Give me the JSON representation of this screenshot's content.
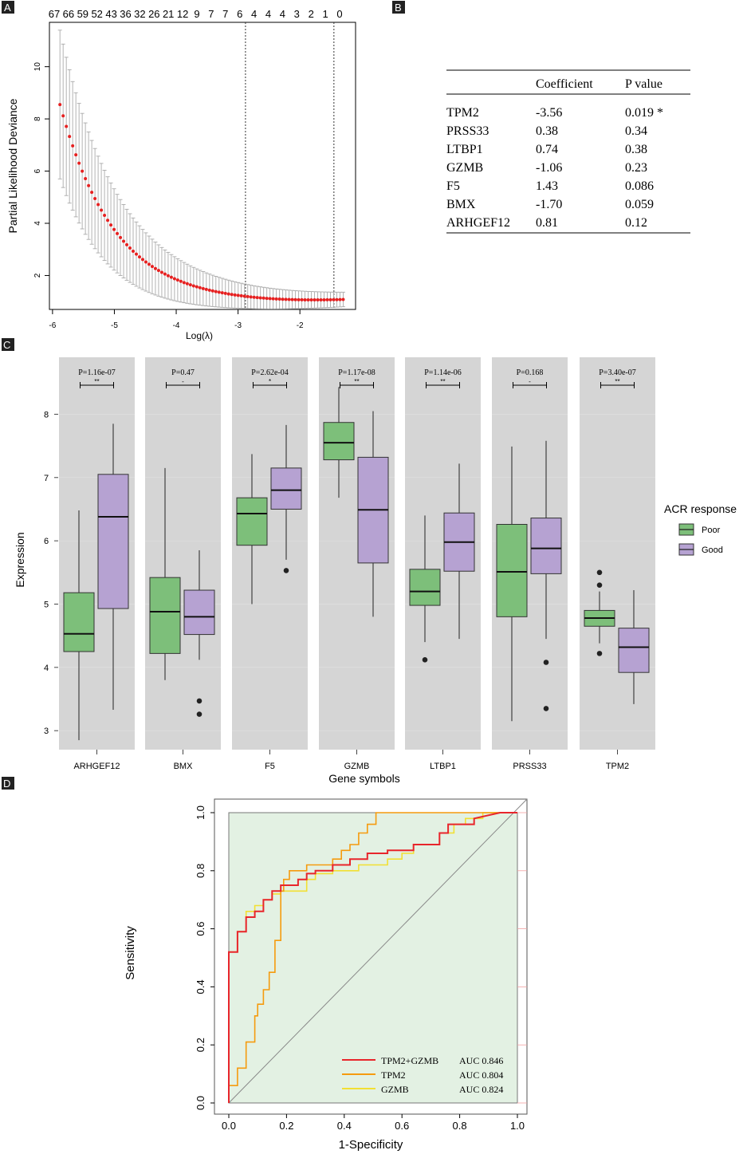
{
  "panels": {
    "a": "A",
    "b": "B",
    "c": "C",
    "d": "D"
  },
  "colors": {
    "poor": "#7dbf7a",
    "good": "#b6a2d2",
    "red_dot": "#e62020",
    "err": "#aaaaaa",
    "gray_bg": "#d5d5d5",
    "roc_bg": "#e3f1e3",
    "roc_combo": "#e8252b",
    "roc_tpm2": "#f59b0e",
    "roc_gzmb": "#f2e033"
  },
  "chart_data": [
    {
      "type": "scatter",
      "panel": "A",
      "xlabel": "Log(λ)",
      "ylabel": "Partial Likelihood Deviance",
      "xlim": [
        -6.05,
        -1.1
      ],
      "ylim": [
        0.7,
        11.7
      ],
      "xticks": [
        -6,
        -5,
        -4,
        -3,
        -2
      ],
      "yticks": [
        2,
        4,
        6,
        8,
        10
      ],
      "top_ticks": [
        "67",
        "66",
        "59",
        "52",
        "43",
        "36",
        "32",
        "26",
        "21",
        "12",
        "9",
        "7",
        "7",
        "6",
        "4",
        "4",
        "4",
        "3",
        "2",
        "1",
        "0"
      ],
      "vlines": [
        -2.88,
        -1.45
      ],
      "curve": {
        "x_start": -5.88,
        "x_end": -1.3,
        "n": 90,
        "y_start": 8.55,
        "y_end": 1.05,
        "y_min": 0.95,
        "err_start": 2.85,
        "err_end": 0.2
      }
    },
    {
      "type": "table",
      "panel": "B",
      "headers": [
        "",
        "Coefficient",
        "P value"
      ],
      "rows": [
        [
          "TPM2",
          "-3.56",
          "0.019 *"
        ],
        [
          "PRSS33",
          "0.38",
          "0.34"
        ],
        [
          "LTBP1",
          "0.74",
          "0.38"
        ],
        [
          "GZMB",
          "-1.06",
          "0.23"
        ],
        [
          "F5",
          "1.43",
          "0.086"
        ],
        [
          "BMX",
          "-1.70",
          "0.059"
        ],
        [
          "ARHGEF12",
          "0.81",
          "0.12"
        ]
      ]
    },
    {
      "type": "box",
      "panel": "C",
      "xlabel": "Gene symbols",
      "ylabel": "Expression",
      "ylim": [
        2.7,
        8.9
      ],
      "yticks": [
        3,
        4,
        5,
        6,
        7,
        8
      ],
      "legend": {
        "title": "ACR response",
        "items": [
          "Poor",
          "Good"
        ],
        "position": "right"
      },
      "genes": [
        {
          "name": "ARHGEF12",
          "p": "P=1.16e-07",
          "sig": "**",
          "poor": {
            "min": 2.85,
            "q1": 4.25,
            "median": 4.53,
            "q3": 5.18,
            "max": 6.48,
            "outliers": []
          },
          "good": {
            "min": 3.33,
            "q1": 4.93,
            "median": 6.38,
            "q3": 7.05,
            "max": 7.85,
            "outliers": []
          }
        },
        {
          "name": "BMX",
          "p": "P=0.47",
          "sig": "-",
          "poor": {
            "min": 3.8,
            "q1": 4.22,
            "median": 4.88,
            "q3": 5.42,
            "max": 7.15,
            "outliers": []
          },
          "good": {
            "min": 4.12,
            "q1": 4.52,
            "median": 4.8,
            "q3": 5.22,
            "max": 5.85,
            "outliers": [
              3.47,
              3.26
            ]
          }
        },
        {
          "name": "F5",
          "p": "P=2.62e-04",
          "sig": "*",
          "poor": {
            "min": 5.0,
            "q1": 5.93,
            "median": 6.43,
            "q3": 6.68,
            "max": 7.37,
            "outliers": []
          },
          "good": {
            "min": 5.7,
            "q1": 6.5,
            "median": 6.8,
            "q3": 7.15,
            "max": 7.83,
            "outliers": [
              5.53
            ]
          }
        },
        {
          "name": "GZMB",
          "p": "P=1.17e-08",
          "sig": "**",
          "poor": {
            "min": 6.68,
            "q1": 7.28,
            "median": 7.55,
            "q3": 7.87,
            "max": 8.43,
            "outliers": []
          },
          "good": {
            "min": 4.8,
            "q1": 5.65,
            "median": 6.49,
            "q3": 7.32,
            "max": 8.05,
            "outliers": []
          }
        },
        {
          "name": "LTBP1",
          "p": "P=1.14e-06",
          "sig": "**",
          "poor": {
            "min": 4.4,
            "q1": 4.98,
            "median": 5.2,
            "q3": 5.55,
            "max": 6.4,
            "outliers": [
              4.12
            ]
          },
          "good": {
            "min": 4.45,
            "q1": 5.52,
            "median": 5.98,
            "q3": 6.44,
            "max": 7.22,
            "outliers": []
          }
        },
        {
          "name": "PRSS33",
          "p": "P=0.168",
          "sig": "-",
          "poor": {
            "min": 3.15,
            "q1": 4.8,
            "median": 5.51,
            "q3": 6.26,
            "max": 7.49,
            "outliers": []
          },
          "good": {
            "min": 4.45,
            "q1": 5.48,
            "median": 5.88,
            "q3": 6.36,
            "max": 7.58,
            "outliers": [
              4.08,
              3.35
            ]
          }
        },
        {
          "name": "TPM2",
          "p": "P=3.40e-07",
          "sig": "**",
          "poor": {
            "min": 4.38,
            "q1": 4.65,
            "median": 4.78,
            "q3": 4.9,
            "max": 5.2,
            "outliers": [
              5.5,
              5.3,
              4.22
            ]
          },
          "good": {
            "min": 3.42,
            "q1": 3.92,
            "median": 4.32,
            "q3": 4.62,
            "max": 5.22,
            "outliers": []
          }
        }
      ]
    },
    {
      "type": "line",
      "panel": "D",
      "xlabel": "1-Specificity",
      "ylabel": "Sensitivity",
      "xlim": [
        0,
        1
      ],
      "ylim": [
        0,
        1
      ],
      "xticks": [
        "0.0",
        "0.2",
        "0.4",
        "0.6",
        "0.8",
        "1.0"
      ],
      "yticks": [
        "0.0",
        "0.2",
        "0.4",
        "0.6",
        "0.8",
        "1.0"
      ],
      "legend_position": "bottom-right",
      "series": [
        {
          "name": "TPM2+GZMB",
          "auc": "AUC 0.846",
          "x": [
            0,
            0,
            0.03,
            0.03,
            0.06,
            0.06,
            0.09,
            0.09,
            0.12,
            0.12,
            0.15,
            0.15,
            0.18,
            0.18,
            0.24,
            0.24,
            0.27,
            0.27,
            0.3,
            0.3,
            0.36,
            0.36,
            0.42,
            0.42,
            0.48,
            0.48,
            0.55,
            0.55,
            0.64,
            0.64,
            0.73,
            0.73,
            0.76,
            0.76,
            0.85,
            0.85,
            0.94,
            1.0
          ],
          "y": [
            0,
            0.52,
            0.52,
            0.59,
            0.59,
            0.64,
            0.64,
            0.66,
            0.66,
            0.7,
            0.7,
            0.73,
            0.73,
            0.75,
            0.75,
            0.77,
            0.77,
            0.79,
            0.79,
            0.8,
            0.8,
            0.82,
            0.82,
            0.84,
            0.84,
            0.86,
            0.86,
            0.87,
            0.87,
            0.89,
            0.89,
            0.93,
            0.93,
            0.96,
            0.96,
            0.98,
            1.0,
            1.0
          ]
        },
        {
          "name": "TPM2",
          "auc": "AUC 0.804",
          "x": [
            0,
            0.0,
            0.03,
            0.03,
            0.06,
            0.06,
            0.09,
            0.09,
            0.1,
            0.1,
            0.12,
            0.12,
            0.14,
            0.14,
            0.16,
            0.16,
            0.18,
            0.18,
            0.19,
            0.19,
            0.21,
            0.21,
            0.27,
            0.27,
            0.36,
            0.36,
            0.39,
            0.39,
            0.42,
            0.42,
            0.45,
            0.45,
            0.48,
            0.48,
            0.51,
            0.51,
            0.55,
            0.55,
            1.0
          ],
          "y": [
            0,
            0.06,
            0.06,
            0.12,
            0.12,
            0.21,
            0.21,
            0.3,
            0.3,
            0.34,
            0.34,
            0.39,
            0.39,
            0.45,
            0.45,
            0.56,
            0.56,
            0.73,
            0.73,
            0.77,
            0.77,
            0.8,
            0.8,
            0.82,
            0.82,
            0.84,
            0.84,
            0.87,
            0.87,
            0.89,
            0.89,
            0.93,
            0.93,
            0.96,
            0.96,
            1.0,
            1.0,
            1.0,
            1.0
          ]
        },
        {
          "name": "GZMB",
          "auc": "AUC 0.824",
          "x": [
            0,
            0,
            0.03,
            0.03,
            0.06,
            0.06,
            0.09,
            0.09,
            0.12,
            0.12,
            0.15,
            0.15,
            0.18,
            0.18,
            0.27,
            0.27,
            0.3,
            0.3,
            0.36,
            0.36,
            0.45,
            0.45,
            0.55,
            0.55,
            0.6,
            0.6,
            0.64,
            0.64,
            0.73,
            0.73,
            0.78,
            0.78,
            0.82,
            0.82,
            0.88,
            0.88,
            0.94,
            1.0
          ],
          "y": [
            0,
            0.52,
            0.52,
            0.59,
            0.59,
            0.66,
            0.66,
            0.68,
            0.68,
            0.7,
            0.7,
            0.72,
            0.72,
            0.73,
            0.73,
            0.77,
            0.77,
            0.79,
            0.79,
            0.8,
            0.8,
            0.82,
            0.82,
            0.84,
            0.84,
            0.86,
            0.86,
            0.89,
            0.89,
            0.93,
            0.93,
            0.96,
            0.96,
            0.98,
            0.98,
            1.0,
            1.0,
            1.0
          ]
        }
      ]
    }
  ]
}
